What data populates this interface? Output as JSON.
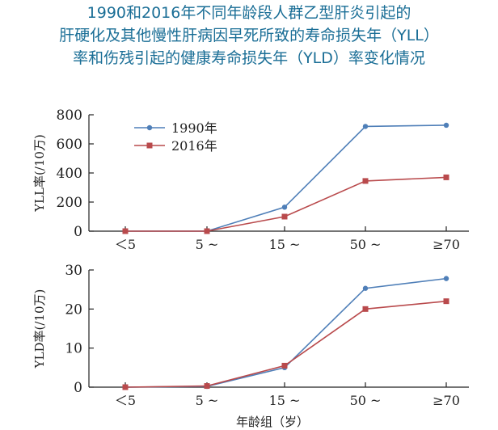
{
  "title": {
    "line1": "1990和2016年不同年龄段人群乙型肝炎引起的",
    "line2": "肝硬化及其他慢性肝病因早死所致的寿命损失年（YLL）",
    "line3": "率和伤残引起的健康寿命损失年（YLD）率变化情况"
  },
  "colors": {
    "s1990": "#4f7fb8",
    "s2016": "#b94a4c",
    "axis": "#222222",
    "title": "#1a6e96"
  },
  "chart_data": [
    {
      "type": "line",
      "categories": [
        "＜5",
        "5 ~",
        "15 ~",
        "50 ~",
        "≥70"
      ],
      "series": [
        {
          "name": "1990年",
          "values": [
            0,
            0,
            165,
            720,
            728
          ]
        },
        {
          "name": "2016年",
          "values": [
            0,
            0,
            100,
            345,
            370
          ]
        }
      ],
      "ylabel": "YLL率(/10万)",
      "yticks": [
        0,
        200,
        400,
        600,
        800
      ],
      "ylim": [
        0,
        800
      ],
      "legend": "top-left",
      "grid": false
    },
    {
      "type": "line",
      "categories": [
        "＜5",
        "5 ~",
        "15 ~",
        "50 ~",
        "≥70"
      ],
      "series": [
        {
          "name": "1990年",
          "values": [
            0,
            0.2,
            5,
            25.3,
            27.8
          ]
        },
        {
          "name": "2016年",
          "values": [
            0,
            0.3,
            5.5,
            20,
            22
          ]
        }
      ],
      "ylabel": "YLD率(/10万)",
      "xlabel": "年龄组（岁）",
      "yticks": [
        0,
        10,
        20,
        30
      ],
      "ylim": [
        0,
        30
      ],
      "grid": false
    }
  ]
}
